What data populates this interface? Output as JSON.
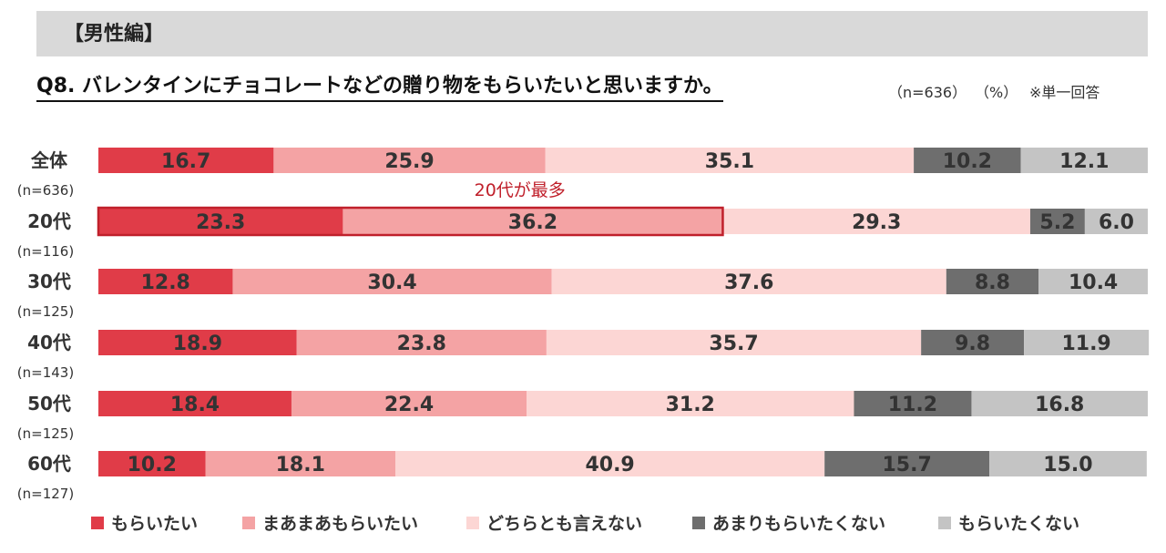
{
  "header": {
    "section_label": "【男性編】"
  },
  "question": {
    "text": "Q8. バレンタインにチョコレートなどの贈り物をもらいたいと思いますか。",
    "sample": "（n=636）",
    "unit": "（%）",
    "note": "※単一回答"
  },
  "annotation": {
    "text": "20代が最多",
    "color": "#c0202b"
  },
  "chart_data": {
    "type": "bar",
    "orientation": "horizontal",
    "stacked": true,
    "xlim": [
      0,
      100
    ],
    "categories": [
      "全体",
      "20代",
      "30代",
      "40代",
      "50代",
      "60代"
    ],
    "sample_sizes": [
      "(n=636)",
      "(n=116)",
      "(n=125)",
      "(n=143)",
      "(n=125)",
      "(n=127)"
    ],
    "series": [
      {
        "name": "もらいたい",
        "color": "#e03c48",
        "values": [
          16.7,
          23.3,
          12.8,
          18.9,
          18.4,
          10.2
        ]
      },
      {
        "name": "まあまあもらいたい",
        "color": "#f4a3a4",
        "values": [
          25.9,
          36.2,
          30.4,
          23.8,
          22.4,
          18.1
        ]
      },
      {
        "name": "どちらとも言えない",
        "color": "#fcd6d4",
        "values": [
          35.1,
          29.3,
          37.6,
          35.7,
          31.2,
          40.9
        ]
      },
      {
        "name": "あまりもらいたくない",
        "color": "#6e6e6e",
        "values": [
          10.2,
          5.2,
          8.8,
          9.8,
          11.2,
          15.7
        ]
      },
      {
        "name": "もらいたくない",
        "color": "#c4c4c4",
        "values": [
          12.1,
          6.0,
          10.4,
          11.9,
          16.8,
          15.0
        ]
      }
    ],
    "highlight": {
      "category": "20代",
      "series": [
        "もらいたい",
        "まあまあもらいたい"
      ],
      "color": "#c0202b"
    },
    "legend_position": "bottom"
  }
}
